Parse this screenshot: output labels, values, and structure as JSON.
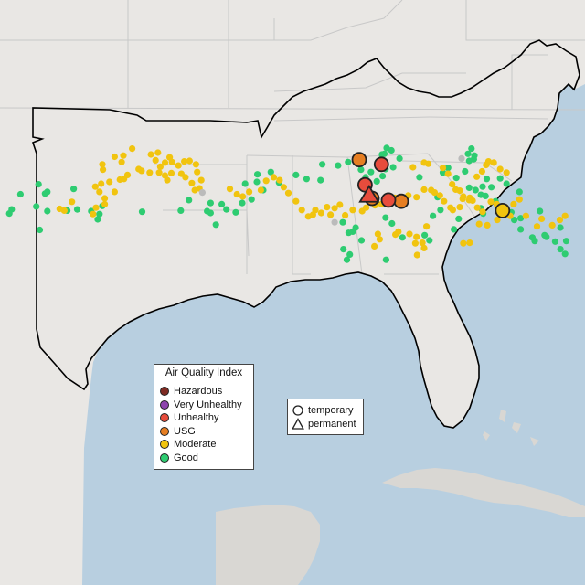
{
  "legend": {
    "title": "Air Quality Index",
    "categories": [
      {
        "label": "Hazardous",
        "color": "#7e2a22"
      },
      {
        "label": "Very Unhealthy",
        "color": "#8e44ad"
      },
      {
        "label": "Unhealthy",
        "color": "#e74c3c"
      },
      {
        "label": "USG",
        "color": "#e67e22"
      },
      {
        "label": "Moderate",
        "color": "#f1c40f"
      },
      {
        "label": "Good",
        "color": "#2ecc71"
      }
    ]
  },
  "shape_legend": {
    "items": [
      {
        "label": "temporary",
        "shape": "circle"
      },
      {
        "label": "permanent",
        "shape": "triangle"
      }
    ]
  },
  "colors": {
    "water": "#b8cfe0",
    "land": "#e9e7e4",
    "land_south": "#d9d7d3",
    "border": "#000000",
    "state_lines": "#c8c8c8",
    "no_data": "#bbbbbb"
  },
  "stations": {
    "good": [
      [
        6.8,
        39.3
      ],
      [
        1.6,
        36.5
      ],
      [
        2.0,
        35.8
      ],
      [
        6.2,
        35.3
      ],
      [
        7.7,
        33.1
      ],
      [
        12.6,
        32.3
      ],
      [
        8.1,
        32.8
      ],
      [
        6.6,
        31.5
      ],
      [
        3.5,
        33.2
      ],
      [
        8.1,
        36.1
      ],
      [
        11.5,
        36.0
      ],
      [
        13.2,
        35.8
      ],
      [
        16.7,
        37.5
      ],
      [
        17.0,
        36.6
      ],
      [
        15.6,
        36.1
      ],
      [
        17.5,
        35.2
      ],
      [
        24.3,
        36.2
      ],
      [
        30.9,
        36.0
      ],
      [
        32.3,
        34.2
      ],
      [
        36.0,
        34.7
      ],
      [
        37.9,
        34.9
      ],
      [
        36.0,
        36.4
      ],
      [
        35.4,
        36.1
      ],
      [
        36.9,
        38.4
      ],
      [
        38.7,
        35.8
      ],
      [
        40.3,
        36.3
      ],
      [
        41.4,
        34.7
      ],
      [
        43.0,
        34.1
      ],
      [
        45.0,
        32.5
      ],
      [
        43.9,
        31.1
      ],
      [
        41.9,
        31.4
      ],
      [
        44.0,
        29.8
      ],
      [
        46.3,
        29.4
      ],
      [
        47.7,
        31.2
      ],
      [
        50.6,
        29.9
      ],
      [
        52.4,
        30.6
      ],
      [
        54.8,
        30.8
      ],
      [
        55.1,
        28.1
      ],
      [
        57.8,
        28.3
      ],
      [
        59.5,
        27.7
      ],
      [
        61.0,
        27.5
      ],
      [
        61.7,
        29.0
      ],
      [
        62.5,
        30.3
      ],
      [
        63.4,
        29.4
      ],
      [
        64.4,
        31.0
      ],
      [
        64.6,
        28.0
      ],
      [
        65.1,
        27.3
      ],
      [
        65.4,
        30.1
      ],
      [
        65.9,
        28.9
      ],
      [
        67.2,
        28.6
      ],
      [
        68.3,
        27.1
      ],
      [
        66.9,
        25.7
      ],
      [
        66.1,
        25.3
      ],
      [
        65.7,
        26.3
      ],
      [
        65.3,
        26.4
      ],
      [
        71.7,
        30.3
      ],
      [
        75.7,
        29.5
      ],
      [
        76.6,
        28.7
      ],
      [
        78.0,
        30.4
      ],
      [
        79.5,
        29.3
      ],
      [
        81.0,
        27.2
      ],
      [
        80.0,
        26.3
      ],
      [
        80.6,
        25.4
      ],
      [
        81.1,
        26.6
      ],
      [
        80.2,
        27.5
      ],
      [
        82.6,
        36.5
      ],
      [
        82.2,
        33.3
      ],
      [
        81.3,
        32.5
      ],
      [
        84.7,
        34.4
      ],
      [
        87.9,
        37.6
      ],
      [
        87.4,
        36.3
      ],
      [
        89.0,
        37.3
      ],
      [
        89.0,
        39.2
      ],
      [
        91.0,
        40.6
      ],
      [
        91.4,
        41.2
      ],
      [
        93.1,
        40.2
      ],
      [
        93.4,
        40.5
      ],
      [
        94.9,
        41.3
      ],
      [
        95.8,
        42.6
      ],
      [
        96.6,
        43.4
      ],
      [
        96.8,
        41.2
      ],
      [
        95.8,
        38.9
      ],
      [
        92.3,
        36.1
      ],
      [
        88.8,
        32.8
      ],
      [
        86.6,
        31.4
      ],
      [
        85.5,
        30.5
      ],
      [
        84.0,
        32.0
      ],
      [
        82.5,
        31.9
      ],
      [
        83.2,
        30.6
      ],
      [
        82.2,
        35.6
      ],
      [
        83.0,
        33.5
      ],
      [
        80.2,
        32.1
      ],
      [
        75.3,
        35.9
      ],
      [
        74.8,
        33.7
      ],
      [
        74.0,
        36.9
      ],
      [
        72.6,
        40.2
      ],
      [
        68.8,
        40.6
      ],
      [
        67.0,
        38.2
      ],
      [
        65.9,
        37.2
      ],
      [
        59.6,
        39.8
      ],
      [
        60.8,
        38.9
      ],
      [
        60.3,
        39.6
      ],
      [
        58.6,
        38.0
      ],
      [
        77.6,
        39.2
      ],
      [
        78.4,
        37.4
      ],
      [
        73.4,
        41.1
      ],
      [
        66.0,
        44.4
      ],
      [
        61.8,
        41.1
      ],
      [
        59.8,
        43.5
      ],
      [
        59.3,
        44.4
      ],
      [
        58.7,
        42.6
      ]
    ],
    "moderate": [
      [
        10.2,
        35.7
      ],
      [
        11.0,
        36.0
      ],
      [
        12.3,
        34.5
      ],
      [
        15.9,
        36.6
      ],
      [
        16.4,
        35.5
      ],
      [
        17.9,
        34.9
      ],
      [
        17.9,
        33.9
      ],
      [
        17.0,
        32.8
      ],
      [
        16.3,
        31.9
      ],
      [
        17.3,
        31.4
      ],
      [
        18.7,
        31.1
      ],
      [
        19.6,
        32.8
      ],
      [
        20.5,
        30.7
      ],
      [
        21.2,
        30.6
      ],
      [
        21.8,
        29.9
      ],
      [
        23.7,
        28.9
      ],
      [
        24.2,
        29.2
      ],
      [
        25.6,
        29.5
      ],
      [
        27.2,
        29.5
      ],
      [
        28.2,
        30.0
      ],
      [
        28.6,
        30.8
      ],
      [
        29.3,
        29.6
      ],
      [
        31.0,
        29.7
      ],
      [
        31.7,
        30.3
      ],
      [
        32.8,
        31.3
      ],
      [
        33.3,
        32.5
      ],
      [
        34.1,
        32.2
      ],
      [
        34.4,
        30.8
      ],
      [
        33.7,
        29.4
      ],
      [
        33.5,
        28.1
      ],
      [
        32.4,
        27.5
      ],
      [
        31.5,
        27.6
      ],
      [
        30.5,
        28.3
      ],
      [
        29.4,
        27.7
      ],
      [
        29.0,
        26.9
      ],
      [
        28.2,
        27.8
      ],
      [
        27.4,
        28.5
      ],
      [
        26.6,
        27.4
      ],
      [
        27.0,
        26.1
      ],
      [
        25.8,
        26.4
      ],
      [
        22.6,
        25.4
      ],
      [
        21.1,
        26.6
      ],
      [
        20.8,
        27.7
      ],
      [
        19.6,
        26.8
      ],
      [
        17.6,
        29.0
      ],
      [
        17.5,
        28.1
      ],
      [
        39.3,
        32.3
      ],
      [
        40.5,
        33.2
      ],
      [
        41.5,
        33.6
      ],
      [
        42.6,
        32.8
      ],
      [
        44.6,
        32.5
      ],
      [
        45.5,
        30.9
      ],
      [
        46.8,
        30.3
      ],
      [
        47.8,
        30.8
      ],
      [
        48.5,
        32.0
      ],
      [
        49.3,
        33.0
      ],
      [
        50.6,
        34.4
      ],
      [
        51.6,
        35.9
      ],
      [
        52.7,
        37.0
      ],
      [
        53.5,
        36.7
      ],
      [
        53.9,
        35.9
      ],
      [
        54.9,
        36.4
      ],
      [
        55.9,
        35.4
      ],
      [
        56.5,
        36.7
      ],
      [
        57.2,
        35.6
      ],
      [
        58.1,
        35.0
      ],
      [
        59.0,
        36.8
      ],
      [
        60.3,
        35.9
      ],
      [
        61.9,
        36.1
      ],
      [
        62.6,
        35.5
      ],
      [
        63.5,
        34.5
      ],
      [
        64.1,
        35.1
      ],
      [
        65.2,
        34.9
      ],
      [
        66.2,
        34.6
      ],
      [
        67.5,
        33.8
      ],
      [
        68.6,
        34.1
      ],
      [
        69.8,
        33.4
      ],
      [
        71.2,
        33.7
      ],
      [
        72.5,
        32.4
      ],
      [
        73.7,
        32.5
      ],
      [
        74.3,
        32.9
      ],
      [
        75.2,
        33.4
      ],
      [
        75.9,
        34.4
      ],
      [
        77.0,
        35.5
      ],
      [
        77.4,
        35.9
      ],
      [
        78.6,
        35.4
      ],
      [
        79.1,
        34.0
      ],
      [
        80.3,
        33.8
      ],
      [
        80.8,
        34.3
      ],
      [
        81.6,
        35.5
      ],
      [
        82.5,
        36.2
      ],
      [
        83.9,
        34.5
      ],
      [
        85.2,
        35.9
      ],
      [
        86.4,
        35.4
      ],
      [
        87.2,
        36.9
      ],
      [
        87.8,
        34.9
      ],
      [
        88.8,
        34.1
      ],
      [
        89.9,
        36.9
      ],
      [
        91.8,
        38.7
      ],
      [
        92.6,
        37.4
      ],
      [
        70.6,
        28.6
      ],
      [
        72.5,
        27.8
      ],
      [
        73.2,
        28.0
      ],
      [
        75.7,
        28.7
      ],
      [
        76.6,
        29.7
      ],
      [
        77.3,
        31.5
      ],
      [
        77.9,
        32.4
      ],
      [
        78.6,
        32.6
      ],
      [
        79.2,
        33.6
      ],
      [
        80.2,
        34.2
      ],
      [
        81.5,
        30.2
      ],
      [
        82.4,
        29.3
      ],
      [
        83.1,
        28.2
      ],
      [
        83.5,
        27.6
      ],
      [
        84.4,
        27.8
      ],
      [
        85.5,
        28.9
      ],
      [
        86.6,
        29.5
      ],
      [
        64.6,
        40.0
      ],
      [
        64.9,
        40.9
      ],
      [
        67.6,
        40.1
      ],
      [
        68.1,
        39.6
      ],
      [
        70.0,
        40.0
      ],
      [
        71.2,
        40.5
      ],
      [
        71.0,
        41.6
      ],
      [
        72.2,
        41.5
      ],
      [
        72.5,
        42.4
      ],
      [
        71.3,
        43.6
      ],
      [
        72.9,
        38.7
      ],
      [
        79.2,
        41.6
      ],
      [
        80.3,
        41.5
      ],
      [
        81.9,
        38.3
      ],
      [
        83.3,
        38.5
      ],
      [
        85.0,
        37.6
      ],
      [
        84.9,
        34.9
      ],
      [
        94.4,
        38.5
      ],
      [
        96.6,
        36.9
      ],
      [
        95.7,
        37.6
      ],
      [
        64.0,
        42.1
      ]
    ],
    "usg": [
      [
        68.6,
        34.4
      ],
      [
        61.4,
        27.3
      ],
      [
        63.6,
        33.9
      ]
    ],
    "unhealthy": [
      [
        62.4,
        31.6
      ],
      [
        65.2,
        28.1
      ],
      [
        66.4,
        34.2
      ]
    ],
    "big_moderate": [
      [
        85.9,
        36.0
      ]
    ],
    "triangle_unhealthy": [
      [
        63.1,
        33.4
      ]
    ],
    "no_data": [
      [
        57.2,
        38.0
      ],
      [
        78.9,
        27.1
      ],
      [
        34.6,
        32.9
      ]
    ]
  }
}
